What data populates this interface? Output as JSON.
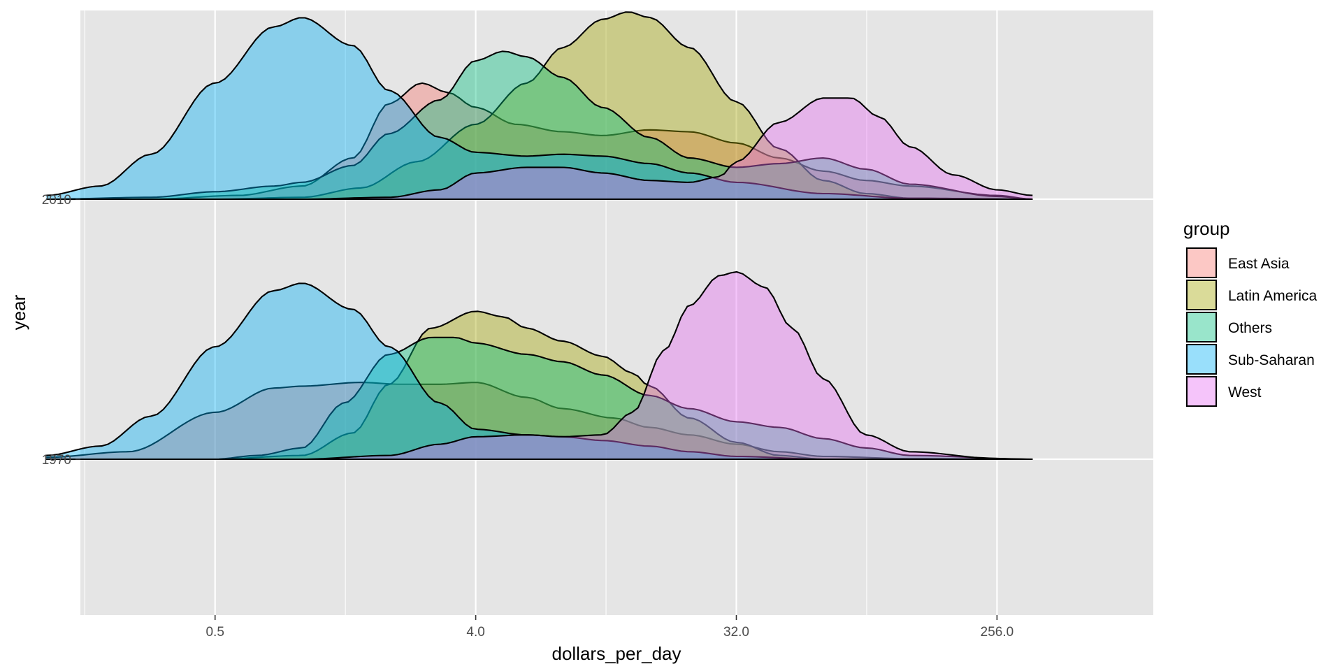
{
  "chart_data": {
    "type": "ridgeline-density",
    "xlabel": "dollars_per_day",
    "ylabel": "year",
    "x_scale": "log2",
    "x_ticks": [
      0.5,
      4.0,
      32.0,
      256.0
    ],
    "x_tick_labels": [
      "0.5",
      "4.0",
      "32.0",
      "256.0"
    ],
    "xlim": [
      0.1,
      362
    ],
    "x_data_range": [
      0.13,
      340
    ],
    "y_categories": [
      "1970",
      "2010"
    ],
    "grid": true,
    "legend": {
      "title": "group",
      "position": "right",
      "entries": [
        "East Asia",
        "Latin America",
        "Others",
        "Sub-Saharan",
        "West"
      ]
    },
    "colors": {
      "East Asia": "#F8766D",
      "Latin America": "#A3A500",
      "Others": "#00BF7D",
      "Sub-Saharan": "#00B0F6",
      "West": "#E76BF3",
      "panel": "#e5e5e5",
      "grid": "#ffffff"
    },
    "series": [
      {
        "name": "East Asia",
        "1970": [
          [
            0.13,
            0.01
          ],
          [
            0.25,
            0.04
          ],
          [
            0.5,
            0.25
          ],
          [
            0.8,
            0.38
          ],
          [
            1.0,
            0.39
          ],
          [
            1.6,
            0.41
          ],
          [
            2.2,
            0.4
          ],
          [
            3.0,
            0.4
          ],
          [
            4.0,
            0.41
          ],
          [
            6.0,
            0.33
          ],
          [
            8.0,
            0.27
          ],
          [
            12.0,
            0.22
          ],
          [
            16.0,
            0.17
          ],
          [
            22.0,
            0.13
          ],
          [
            32.0,
            0.08
          ],
          [
            45.0,
            0.04
          ],
          [
            64.0,
            0.015
          ],
          [
            128.0,
            0.003
          ],
          [
            340.0,
            0.0
          ]
        ],
        "2010": [
          [
            0.13,
            0.0
          ],
          [
            0.3,
            0.0
          ],
          [
            0.6,
            0.02
          ],
          [
            1.0,
            0.07
          ],
          [
            1.5,
            0.22
          ],
          [
            2.0,
            0.51
          ],
          [
            2.6,
            0.62
          ],
          [
            3.2,
            0.57
          ],
          [
            4.0,
            0.49
          ],
          [
            5.5,
            0.4
          ],
          [
            8.0,
            0.36
          ],
          [
            11.0,
            0.34
          ],
          [
            16.0,
            0.37
          ],
          [
            22.0,
            0.36
          ],
          [
            32.0,
            0.3
          ],
          [
            45.0,
            0.22
          ],
          [
            64.0,
            0.15
          ],
          [
            90.0,
            0.1
          ],
          [
            128.0,
            0.07
          ],
          [
            256.0,
            0.02
          ],
          [
            340.0,
            0.0
          ]
        ]
      },
      {
        "name": "Latin America",
        "1970": [
          [
            0.13,
            0.0
          ],
          [
            0.5,
            0.0
          ],
          [
            1.0,
            0.02
          ],
          [
            1.5,
            0.14
          ],
          [
            2.0,
            0.4
          ],
          [
            2.8,
            0.7
          ],
          [
            4.0,
            0.79
          ],
          [
            5.0,
            0.76
          ],
          [
            6.0,
            0.7
          ],
          [
            8.0,
            0.63
          ],
          [
            11.0,
            0.55
          ],
          [
            14.0,
            0.46
          ],
          [
            16.0,
            0.39
          ],
          [
            22.0,
            0.22
          ],
          [
            32.0,
            0.09
          ],
          [
            45.0,
            0.02
          ],
          [
            64.0,
            0.0
          ],
          [
            340.0,
            0.0
          ]
        ],
        "2010": [
          [
            0.13,
            0.0
          ],
          [
            0.5,
            0.0
          ],
          [
            1.0,
            0.01
          ],
          [
            1.6,
            0.06
          ],
          [
            2.5,
            0.2
          ],
          [
            4.0,
            0.4
          ],
          [
            6.0,
            0.62
          ],
          [
            8.0,
            0.81
          ],
          [
            11.0,
            0.96
          ],
          [
            13.5,
            1.0
          ],
          [
            16.0,
            0.97
          ],
          [
            22.0,
            0.81
          ],
          [
            32.0,
            0.52
          ],
          [
            45.0,
            0.27
          ],
          [
            64.0,
            0.1
          ],
          [
            90.0,
            0.03
          ],
          [
            128.0,
            0.005
          ],
          [
            340.0,
            0.0
          ]
        ]
      },
      {
        "name": "Others",
        "1970": [
          [
            0.13,
            0.0
          ],
          [
            0.5,
            0.0
          ],
          [
            0.7,
            0.02
          ],
          [
            1.0,
            0.06
          ],
          [
            1.4,
            0.3
          ],
          [
            2.0,
            0.56
          ],
          [
            2.8,
            0.65
          ],
          [
            3.4,
            0.65
          ],
          [
            4.0,
            0.62
          ],
          [
            6.0,
            0.56
          ],
          [
            8.0,
            0.52
          ],
          [
            11.0,
            0.45
          ],
          [
            16.0,
            0.34
          ],
          [
            22.0,
            0.27
          ],
          [
            32.0,
            0.2
          ],
          [
            45.0,
            0.17
          ],
          [
            64.0,
            0.11
          ],
          [
            90.0,
            0.06
          ],
          [
            128.0,
            0.02
          ],
          [
            340.0,
            0.0
          ]
        ],
        "2010": [
          [
            0.13,
            0.0
          ],
          [
            0.3,
            0.01
          ],
          [
            0.5,
            0.04
          ],
          [
            0.8,
            0.07
          ],
          [
            1.0,
            0.09
          ],
          [
            1.5,
            0.18
          ],
          [
            2.0,
            0.35
          ],
          [
            3.0,
            0.53
          ],
          [
            4.0,
            0.74
          ],
          [
            5.0,
            0.79
          ],
          [
            6.0,
            0.76
          ],
          [
            8.0,
            0.65
          ],
          [
            11.0,
            0.49
          ],
          [
            16.0,
            0.33
          ],
          [
            22.0,
            0.22
          ],
          [
            32.0,
            0.17
          ],
          [
            45.0,
            0.19
          ],
          [
            64.0,
            0.22
          ],
          [
            90.0,
            0.16
          ],
          [
            128.0,
            0.08
          ],
          [
            256.0,
            0.015
          ],
          [
            340.0,
            0.0
          ]
        ]
      },
      {
        "name": "Sub-Saharan",
        "1970": [
          [
            0.13,
            0.02
          ],
          [
            0.2,
            0.07
          ],
          [
            0.3,
            0.23
          ],
          [
            0.5,
            0.6
          ],
          [
            0.8,
            0.9
          ],
          [
            1.0,
            0.94
          ],
          [
            1.5,
            0.8
          ],
          [
            2.0,
            0.6
          ],
          [
            3.0,
            0.3
          ],
          [
            4.0,
            0.16
          ],
          [
            6.0,
            0.13
          ],
          [
            8.0,
            0.12
          ],
          [
            11.0,
            0.1
          ],
          [
            16.0,
            0.07
          ],
          [
            22.0,
            0.04
          ],
          [
            32.0,
            0.015
          ],
          [
            64.0,
            0.0
          ],
          [
            340.0,
            0.0
          ]
        ],
        "2010": [
          [
            0.13,
            0.02
          ],
          [
            0.2,
            0.07
          ],
          [
            0.3,
            0.24
          ],
          [
            0.5,
            0.62
          ],
          [
            0.8,
            0.92
          ],
          [
            1.0,
            0.97
          ],
          [
            1.5,
            0.82
          ],
          [
            2.0,
            0.58
          ],
          [
            3.0,
            0.33
          ],
          [
            4.0,
            0.25
          ],
          [
            6.0,
            0.23
          ],
          [
            8.0,
            0.24
          ],
          [
            11.0,
            0.23
          ],
          [
            16.0,
            0.19
          ],
          [
            22.0,
            0.14
          ],
          [
            32.0,
            0.09
          ],
          [
            64.0,
            0.03
          ],
          [
            128.0,
            0.005
          ],
          [
            340.0,
            0.0
          ]
        ]
      },
      {
        "name": "West",
        "1970": [
          [
            0.13,
            0.0
          ],
          [
            1.0,
            0.0
          ],
          [
            2.0,
            0.02
          ],
          [
            3.0,
            0.08
          ],
          [
            4.0,
            0.12
          ],
          [
            6.0,
            0.13
          ],
          [
            8.0,
            0.12
          ],
          [
            11.0,
            0.13
          ],
          [
            14.0,
            0.25
          ],
          [
            18.0,
            0.58
          ],
          [
            22.0,
            0.82
          ],
          [
            28.0,
            0.98
          ],
          [
            32.0,
            1.0
          ],
          [
            40.0,
            0.92
          ],
          [
            50.0,
            0.7
          ],
          [
            64.0,
            0.43
          ],
          [
            90.0,
            0.13
          ],
          [
            128.0,
            0.04
          ],
          [
            256.0,
            0.003
          ],
          [
            340.0,
            0.0
          ]
        ],
        "2010": [
          [
            0.13,
            0.0
          ],
          [
            1.0,
            0.0
          ],
          [
            2.0,
            0.01
          ],
          [
            3.0,
            0.05
          ],
          [
            4.0,
            0.14
          ],
          [
            6.0,
            0.17
          ],
          [
            8.0,
            0.17
          ],
          [
            11.0,
            0.14
          ],
          [
            16.0,
            0.1
          ],
          [
            22.0,
            0.09
          ],
          [
            28.0,
            0.12
          ],
          [
            32.0,
            0.2
          ],
          [
            45.0,
            0.41
          ],
          [
            64.0,
            0.54
          ],
          [
            80.0,
            0.54
          ],
          [
            100.0,
            0.44
          ],
          [
            128.0,
            0.28
          ],
          [
            181.0,
            0.13
          ],
          [
            256.0,
            0.05
          ],
          [
            340.0,
            0.02
          ]
        ]
      }
    ]
  }
}
